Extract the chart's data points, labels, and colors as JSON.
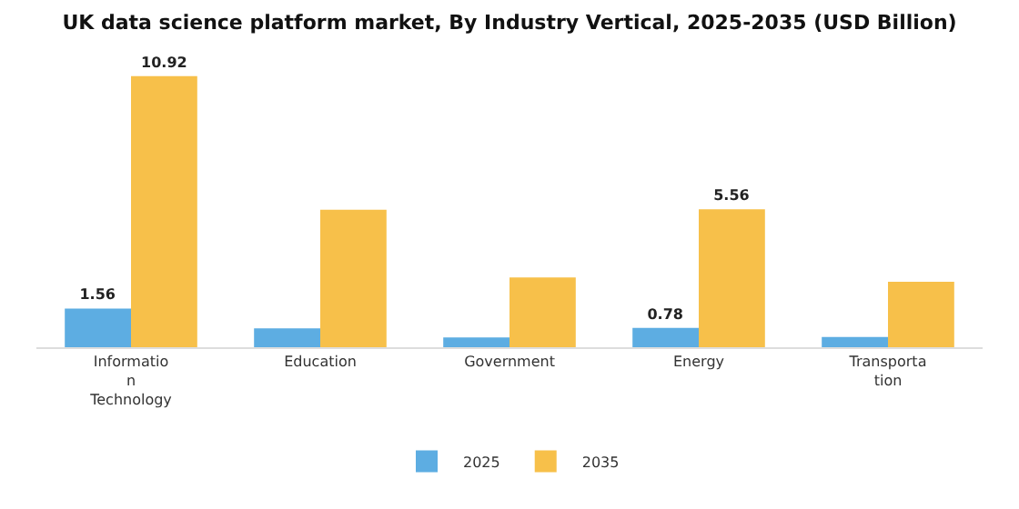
{
  "chart_data": {
    "type": "bar",
    "title": "UK data science platform market, By Industry Vertical, 2025-2035 (USD Billion)",
    "categories": [
      "Information Technology",
      "Education",
      "Government",
      "Energy",
      "Transportation"
    ],
    "series": [
      {
        "name": "2025",
        "color": "#5dade2",
        "values": [
          1.56,
          0.76,
          0.39,
          0.78,
          0.41
        ],
        "value_labels": [
          "1.56",
          null,
          null,
          "0.78",
          null
        ]
      },
      {
        "name": "2035",
        "color": "#f7c04a",
        "values": [
          10.92,
          5.54,
          2.81,
          5.56,
          2.64
        ],
        "value_labels": [
          "10.92",
          null,
          null,
          "5.56",
          null
        ]
      }
    ],
    "legend": "bottom"
  }
}
